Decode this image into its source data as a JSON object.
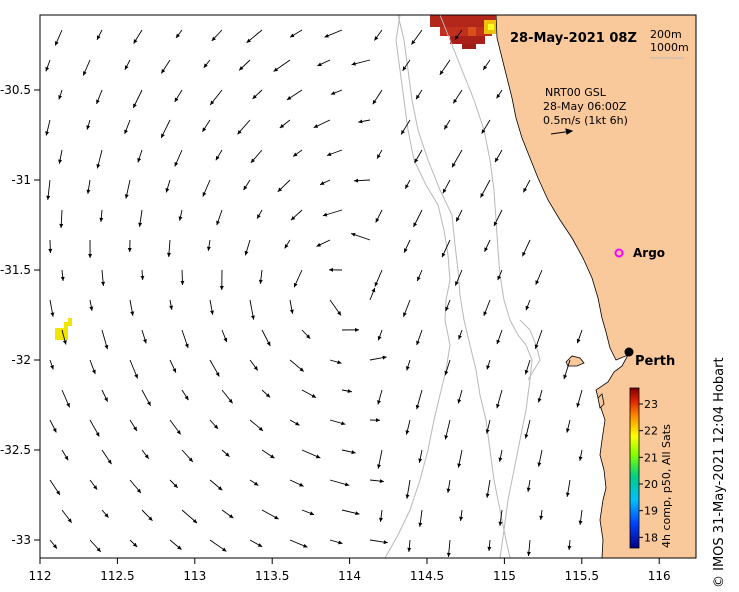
{
  "title": "28-May-2021 08Z",
  "contours": {
    "shelf": "200m",
    "slope": "1000m"
  },
  "vector_legend": {
    "line1": "NRT00 GSL",
    "line2": "28-May 06:00Z",
    "line3": "0.5m/s (1kt 6h)"
  },
  "places": {
    "argo": "Argo",
    "city": "Perth"
  },
  "colorbar": {
    "label": "4h comp, p50, All Sats",
    "ticks": [
      "23",
      "22",
      "21",
      "20",
      "19",
      "18"
    ],
    "range": [
      17.6,
      23.6
    ]
  },
  "credit": "© IMOS 31-May-2021 12:04 Hobart",
  "axes": {
    "x_ticks": [
      "112",
      "112.5",
      "113",
      "113.5",
      "114",
      "114.5",
      "115",
      "115.5",
      "116"
    ],
    "y_ticks": [
      "-30.5",
      "-31",
      "-31.5",
      "-32",
      "-32.5",
      "-33"
    ],
    "xlim": [
      112,
      116.3
    ],
    "ylim": [
      -33.1,
      -30.1
    ]
  },
  "colors": {
    "land": "#f9c89b",
    "sst_warm": "#c0281a",
    "sst_mid": "#ffff00",
    "contour": "#b8b8b8",
    "argo": "#ff00ff"
  }
}
